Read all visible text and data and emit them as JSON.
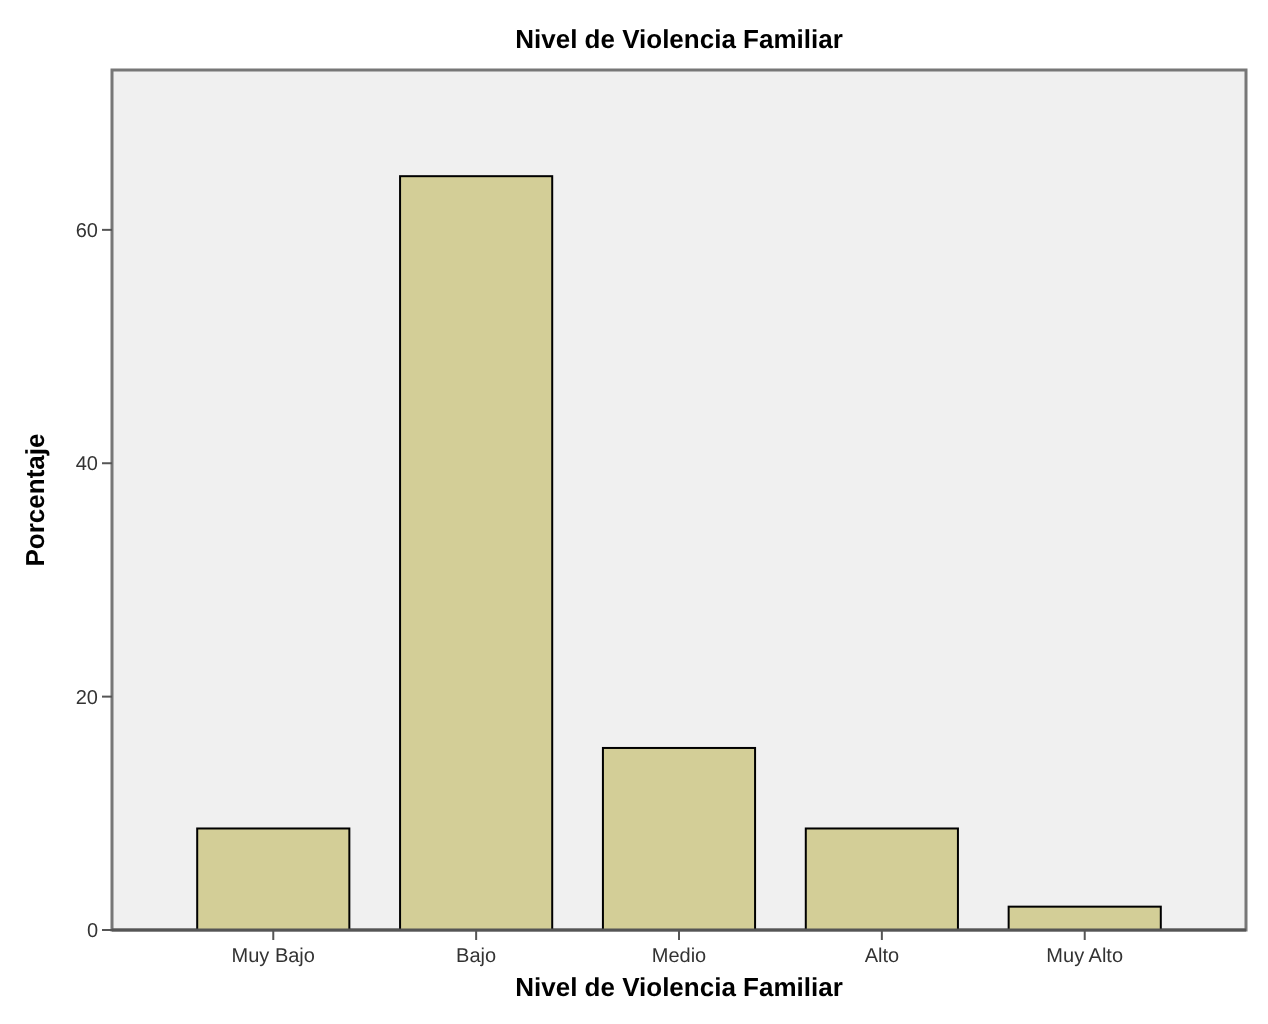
{
  "chart_data": {
    "type": "bar",
    "title": "Nivel de Violencia Familiar",
    "xlabel": "Nivel de Violencia Familiar",
    "ylabel": "Porcentaje",
    "categories": [
      "Muy Bajo",
      "Bajo",
      "Medio",
      "Alto",
      "Muy Alto"
    ],
    "values": [
      8.7,
      64.6,
      15.6,
      8.7,
      2.0
    ],
    "color": "#d3ce97",
    "ylim": [
      0,
      73.7
    ],
    "yticks": [
      0,
      20,
      40,
      60
    ],
    "grid": false
  }
}
